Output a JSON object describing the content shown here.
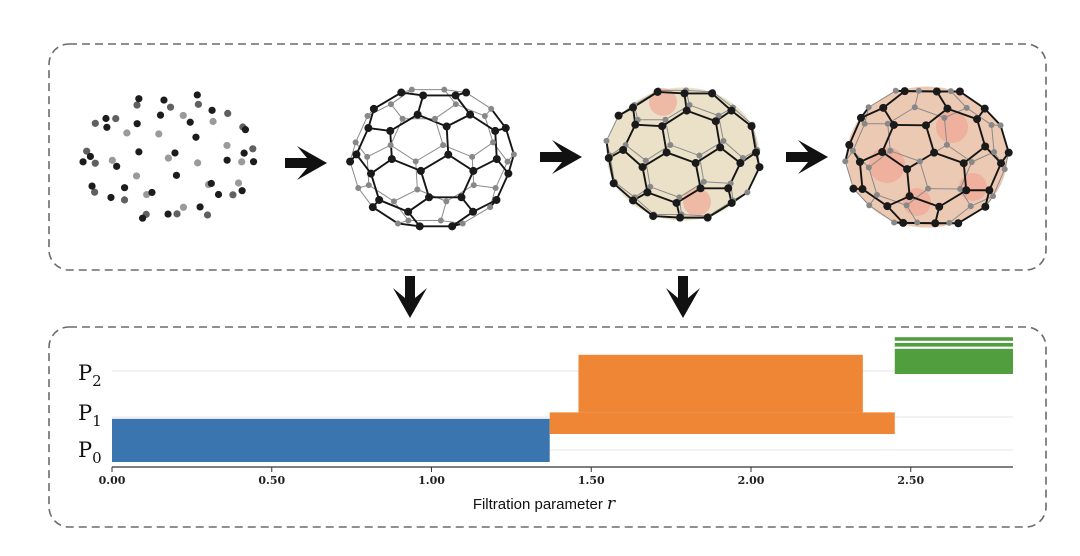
{
  "colors": {
    "panel_border": "#6b6b6b",
    "p0_bar": "#3b75af",
    "p1_bar": "#ef8636",
    "p2_bar": "#519e3e",
    "node": "#1a1a1a",
    "edge": "#151515",
    "face_tint": "#d9c99a",
    "pentagon_tint": "#f2a08e"
  },
  "icons": [
    "arrow-right-icon",
    "arrow-down-icon"
  ],
  "stages": [
    "point-cloud",
    "graph",
    "partial-complex",
    "full-complex"
  ],
  "chart_data": {
    "type": "barcode",
    "xlabel": "Filtration parameter ",
    "xlabel_var": "r",
    "xlim": [
      0,
      2.82
    ],
    "xticks": [
      "0.00",
      "0.50",
      "1.00",
      "1.50",
      "2.00",
      "2.50"
    ],
    "dims": [
      {
        "sym": "P",
        "sub": "0"
      },
      {
        "sym": "P",
        "sub": "1"
      },
      {
        "sym": "P",
        "sub": "2"
      }
    ],
    "series": [
      {
        "dim": 0,
        "bars": [
          {
            "start": 0.0,
            "end": 1.37,
            "count": 12
          }
        ]
      },
      {
        "dim": 1,
        "bars": [
          {
            "start": 1.37,
            "end": 2.45,
            "count": 6
          },
          {
            "start": 1.46,
            "end": 2.35,
            "count": 16
          }
        ]
      },
      {
        "dim": 2,
        "bars": [
          {
            "start": 2.45,
            "end": 2.82,
            "count": 7
          },
          {
            "start": 2.45,
            "end": 2.82,
            "count": 1
          },
          {
            "start": 2.45,
            "end": 2.82,
            "count": 1
          }
        ]
      }
    ]
  }
}
